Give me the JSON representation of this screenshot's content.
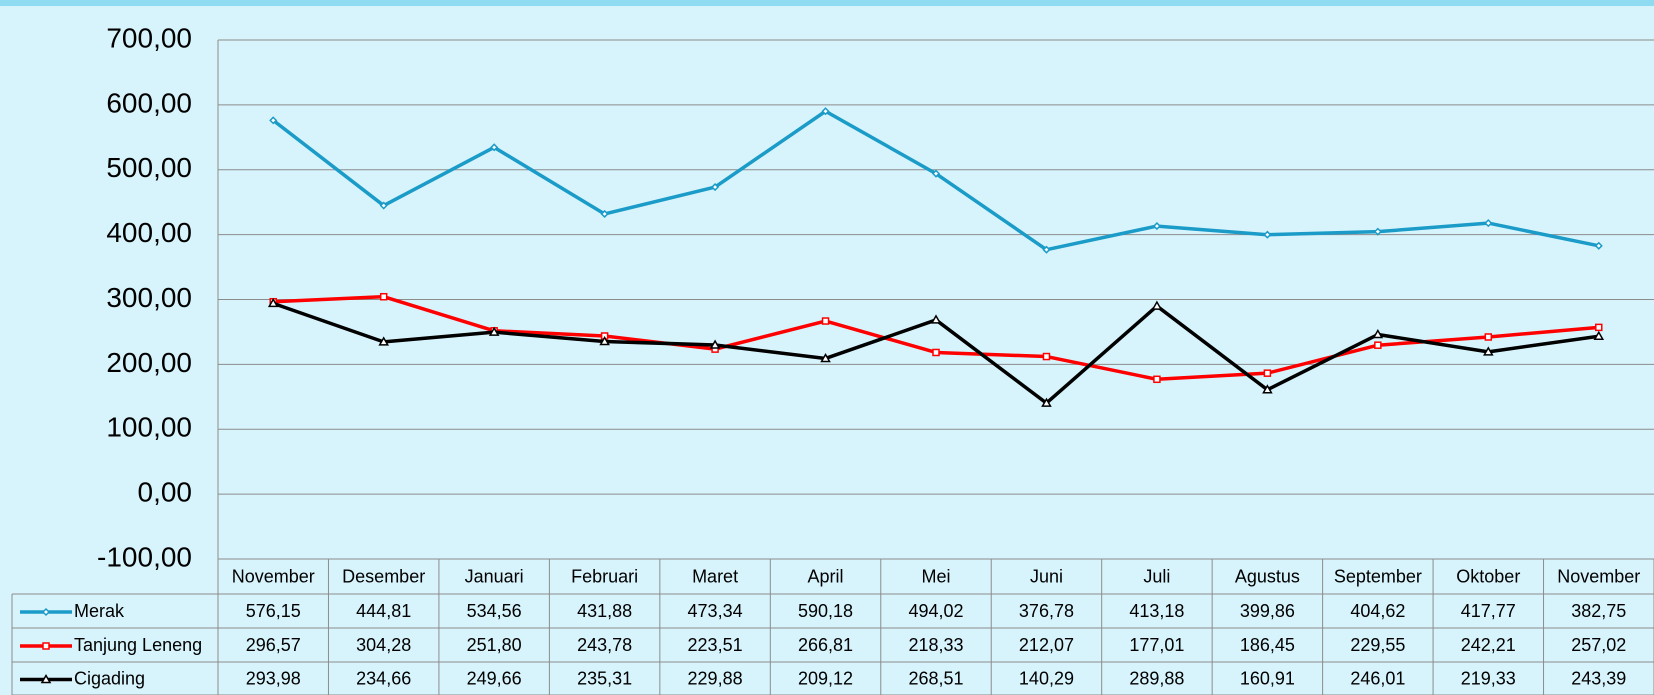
{
  "chart_data": {
    "type": "line",
    "categories": [
      "November",
      "Desember",
      "Januari",
      "Februari",
      "Maret",
      "April",
      "Mei",
      "Juni",
      "Juli",
      "Agustus",
      "September",
      "Oktober",
      "November"
    ],
    "series": [
      {
        "name": "Merak",
        "color": "#1b9bc8",
        "marker": "diamond",
        "values": [
          576.15,
          444.81,
          534.56,
          431.88,
          473.34,
          590.18,
          494.02,
          376.78,
          413.18,
          399.86,
          404.62,
          417.77,
          382.75
        ],
        "value_labels": [
          "576,15",
          "444,81",
          "534,56",
          "431,88",
          "473,34",
          "590,18",
          "494,02",
          "376,78",
          "413,18",
          "399,86",
          "404,62",
          "417,77",
          "382,75"
        ]
      },
      {
        "name": "Tanjung Leneng",
        "color": "#ff0000",
        "marker": "square",
        "values": [
          296.57,
          304.28,
          251.8,
          243.78,
          223.51,
          266.81,
          218.33,
          212.07,
          177.01,
          186.45,
          229.55,
          242.21,
          257.02
        ],
        "value_labels": [
          "296,57",
          "304,28",
          "251,80",
          "243,78",
          "223,51",
          "266,81",
          "218,33",
          "212,07",
          "177,01",
          "186,45",
          "229,55",
          "242,21",
          "257,02"
        ]
      },
      {
        "name": "Cigading",
        "color": "#000000",
        "marker": "triangle",
        "values": [
          293.98,
          234.66,
          249.66,
          235.31,
          229.88,
          209.12,
          268.51,
          140.29,
          289.88,
          160.91,
          246.01,
          219.33,
          243.39
        ],
        "value_labels": [
          "293,98",
          "234,66",
          "249,66",
          "235,31",
          "229,88",
          "209,12",
          "268,51",
          "140,29",
          "289,88",
          "160,91",
          "246,01",
          "219,33",
          "243,39"
        ]
      }
    ],
    "ylim": [
      -100,
      700
    ],
    "yticks": [
      {
        "value": -100,
        "label": "-100,00"
      },
      {
        "value": 0,
        "label": "0,00"
      },
      {
        "value": 100,
        "label": "100,00"
      },
      {
        "value": 200,
        "label": "200,00"
      },
      {
        "value": 300,
        "label": "300,00"
      },
      {
        "value": 400,
        "label": "400,00"
      },
      {
        "value": 500,
        "label": "500,00"
      },
      {
        "value": 600,
        "label": "600,00"
      },
      {
        "value": 700,
        "label": "700,00"
      }
    ],
    "grid": true,
    "data_table": true
  }
}
